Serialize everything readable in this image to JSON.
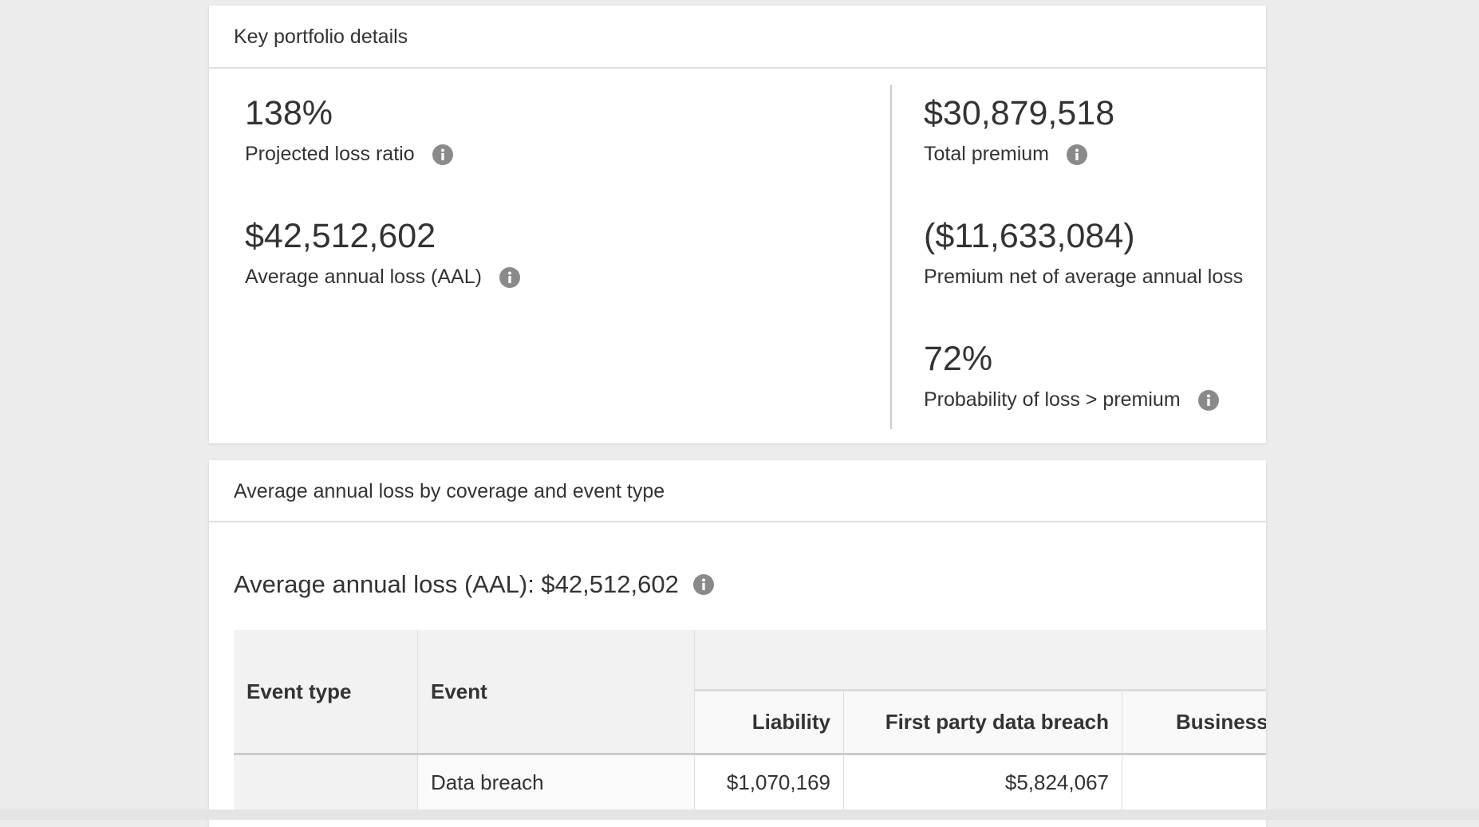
{
  "portfolio": {
    "title": "Key portfolio details",
    "left": [
      {
        "value": "138%",
        "label": "Projected loss ratio",
        "info": true
      },
      {
        "value": "$42,512,602",
        "label": "Average annual loss (AAL)",
        "info": true
      }
    ],
    "right": [
      {
        "value": "$30,879,518",
        "label": "Total premium",
        "info": true
      },
      {
        "value": "($11,633,084)",
        "label": "Premium net of average annual loss",
        "info": false
      },
      {
        "value": "72%",
        "label": "Probability of loss > premium",
        "info": true
      }
    ]
  },
  "aal_section": {
    "title": "Average annual loss by coverage and event type",
    "heading": "Average annual loss (AAL): $42,512,602",
    "table": {
      "headers": [
        "Event type",
        "Event",
        "Liability",
        "First party data breach",
        "Business i"
      ],
      "rows": [
        {
          "event": "Data breach",
          "liability": "$1,070,169",
          "first_party_data_breach": "$5,824,067"
        }
      ]
    }
  }
}
